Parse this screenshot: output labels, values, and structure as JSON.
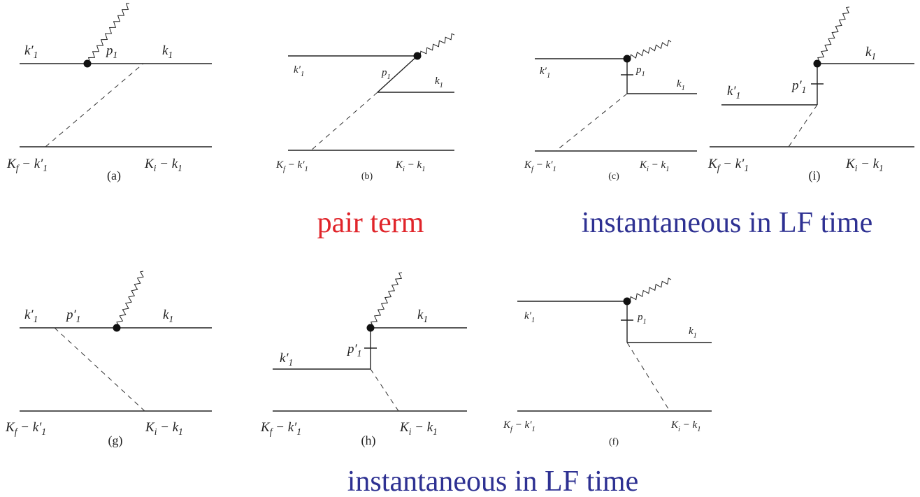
{
  "diagrams": [
    {
      "caption": "(a)",
      "labels": [
        [
          [
            "k′",
            "1"
          ]
        ],
        [
          [
            "p",
            "1"
          ]
        ],
        [
          [
            "k",
            "1"
          ]
        ],
        [
          [
            "K",
            "f"
          ],
          [
            " − k′",
            "1"
          ]
        ],
        [
          [
            "K",
            "i"
          ],
          [
            " − k",
            "1"
          ]
        ]
      ]
    },
    {
      "caption": "(b)",
      "labels": [
        [
          [
            "k′",
            "1"
          ]
        ],
        [
          [
            "p",
            "1"
          ]
        ],
        [
          [
            "k",
            "1"
          ]
        ],
        [
          [
            "K",
            "f"
          ],
          [
            " − k′",
            "1"
          ]
        ],
        [
          [
            "K",
            "i"
          ],
          [
            " − k",
            "1"
          ]
        ]
      ]
    },
    {
      "caption": "(c)",
      "labels": [
        [
          [
            "k′",
            "1"
          ]
        ],
        [
          [
            "p",
            "1"
          ]
        ],
        [
          [
            "k",
            "1"
          ]
        ],
        [
          [
            "K",
            "f"
          ],
          [
            " − k′",
            "1"
          ]
        ],
        [
          [
            "K",
            "i"
          ],
          [
            " − k",
            "1"
          ]
        ]
      ]
    },
    {
      "caption": "(i)",
      "labels": [
        [
          [
            "k",
            "1"
          ]
        ],
        [
          [
            "p′",
            "1"
          ]
        ],
        [
          [
            "k′",
            "1"
          ]
        ],
        [
          [
            "K",
            "f"
          ],
          [
            " − k′",
            "1"
          ]
        ],
        [
          [
            "K",
            "i"
          ],
          [
            " − k",
            "1"
          ]
        ]
      ]
    },
    {
      "caption": "(g)",
      "labels": [
        [
          [
            "k′",
            "1"
          ]
        ],
        [
          [
            "p′",
            "1"
          ]
        ],
        [
          [
            "k",
            "1"
          ]
        ],
        [
          [
            "K",
            "f"
          ],
          [
            " − k′",
            "1"
          ]
        ],
        [
          [
            "K",
            "i"
          ],
          [
            " − k",
            "1"
          ]
        ]
      ]
    },
    {
      "caption": "(h)",
      "labels": [
        [
          [
            "k",
            "1"
          ]
        ],
        [
          [
            "p′",
            "1"
          ]
        ],
        [
          [
            "k′",
            "1"
          ]
        ],
        [
          [
            "K",
            "f"
          ],
          [
            " − k′",
            "1"
          ]
        ],
        [
          [
            "K",
            "i"
          ],
          [
            " − k",
            "1"
          ]
        ]
      ]
    },
    {
      "caption": "(f)",
      "labels": [
        [
          [
            "k′",
            "1"
          ]
        ],
        [
          [
            "p",
            "1"
          ]
        ],
        [
          [
            "k",
            "1"
          ]
        ],
        [
          [
            "K",
            "f"
          ],
          [
            " − k′",
            "1"
          ]
        ],
        [
          [
            "K",
            "i"
          ],
          [
            " − k",
            "1"
          ]
        ]
      ]
    }
  ],
  "annotations": [
    "pair term",
    "instantaneous in LF time",
    "instantaneous in LF time"
  ]
}
